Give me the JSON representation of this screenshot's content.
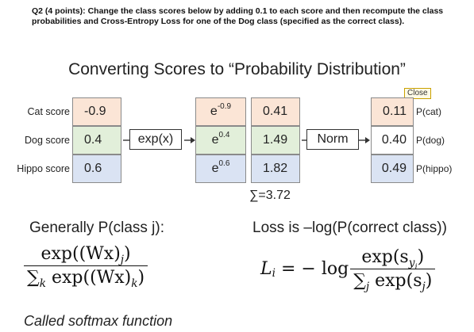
{
  "question": "Q2 (4 points): Change the class scores below by adding 0.1 to each score and then  recompute the class probabilities and Cross-Entropy Loss for one of the  Dog class (specified as the correct class).",
  "title": "Converting Scores to “Probability Distribution”",
  "rows": [
    {
      "label": "Cat score",
      "score": "-0.9",
      "exp_base": "e",
      "exp_power": "-0.9",
      "exp_value": "0.41",
      "prob": "0.11",
      "prob_label": "P(cat)"
    },
    {
      "label": "Dog score",
      "score": "0.4",
      "exp_base": "e",
      "exp_power": "0.4",
      "exp_value": "1.49",
      "prob": "0.40",
      "prob_label": "P(dog)"
    },
    {
      "label": "Hippo score",
      "score": "0.6",
      "exp_base": "e",
      "exp_power": "0.6",
      "exp_value": "1.82",
      "prob": "0.49",
      "prob_label": "P(hippo)"
    }
  ],
  "ops": {
    "exp": "exp(x)",
    "norm": "Norm"
  },
  "sum_text": "∑=3.72",
  "close_label": "Close",
  "general_label": "Generally P(class j):",
  "loss_label": "Loss is –log(P(correct class))",
  "softmax_caption": "Called softmax function",
  "formula_left": {
    "num": "exp((Wx)",
    "num_sub": "j",
    "num_tail": ")",
    "den_sigma": "∑",
    "den_sub": "k",
    "den_body": " exp((Wx)",
    "den_sub2": "k",
    "den_tail": ")"
  },
  "formula_right": {
    "lhs": "L",
    "lhs_sub": "i",
    "eq": " = − log",
    "num": "exp(s",
    "num_sub": "y",
    "num_subsub": "i",
    "num_tail": ")",
    "den_sigma": "∑",
    "den_sub": "j",
    "den_body": " exp(s",
    "den_sub2": "j",
    "den_tail": ")"
  }
}
